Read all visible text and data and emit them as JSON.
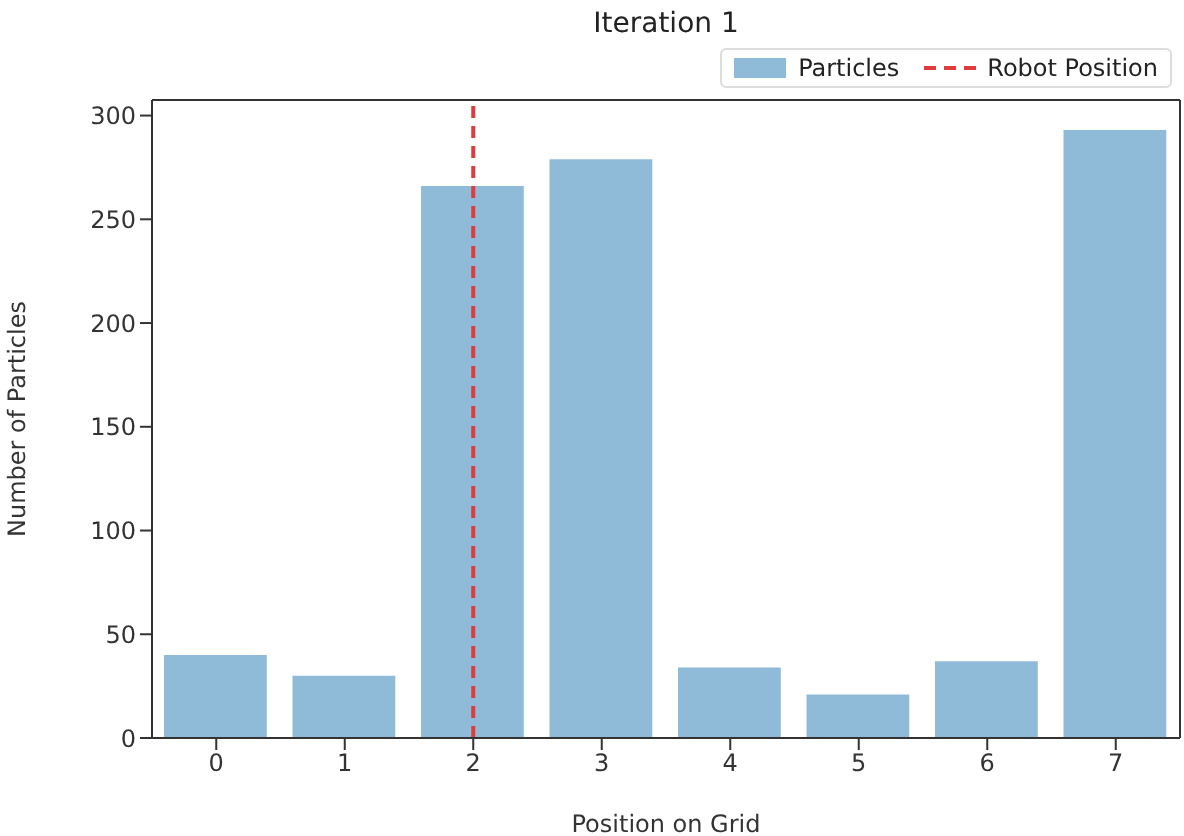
{
  "chart_data": {
    "type": "bar",
    "title": "Iteration 1",
    "xlabel": "Position on Grid",
    "ylabel": "Number of Particles",
    "x": [
      0,
      1,
      2,
      3,
      4,
      5,
      6,
      7
    ],
    "series": [
      {
        "name": "Particles",
        "color": "#8fbbd9",
        "values": [
          40,
          30,
          266,
          279,
          34,
          21,
          37,
          293
        ]
      }
    ],
    "xlim": [
      -0.5,
      7.5
    ],
    "xticks": [
      0,
      1,
      2,
      3,
      4,
      5,
      6,
      7
    ],
    "ylim": [
      0,
      307.5
    ],
    "yticks": [
      0,
      50,
      100,
      150,
      200,
      250,
      300
    ],
    "ref_lines": [
      {
        "axis": "x",
        "value": 2,
        "label": "Robot Position",
        "color": "#e03c3c",
        "line_style": "dashed"
      }
    ],
    "legend": "top right",
    "grid": false
  }
}
